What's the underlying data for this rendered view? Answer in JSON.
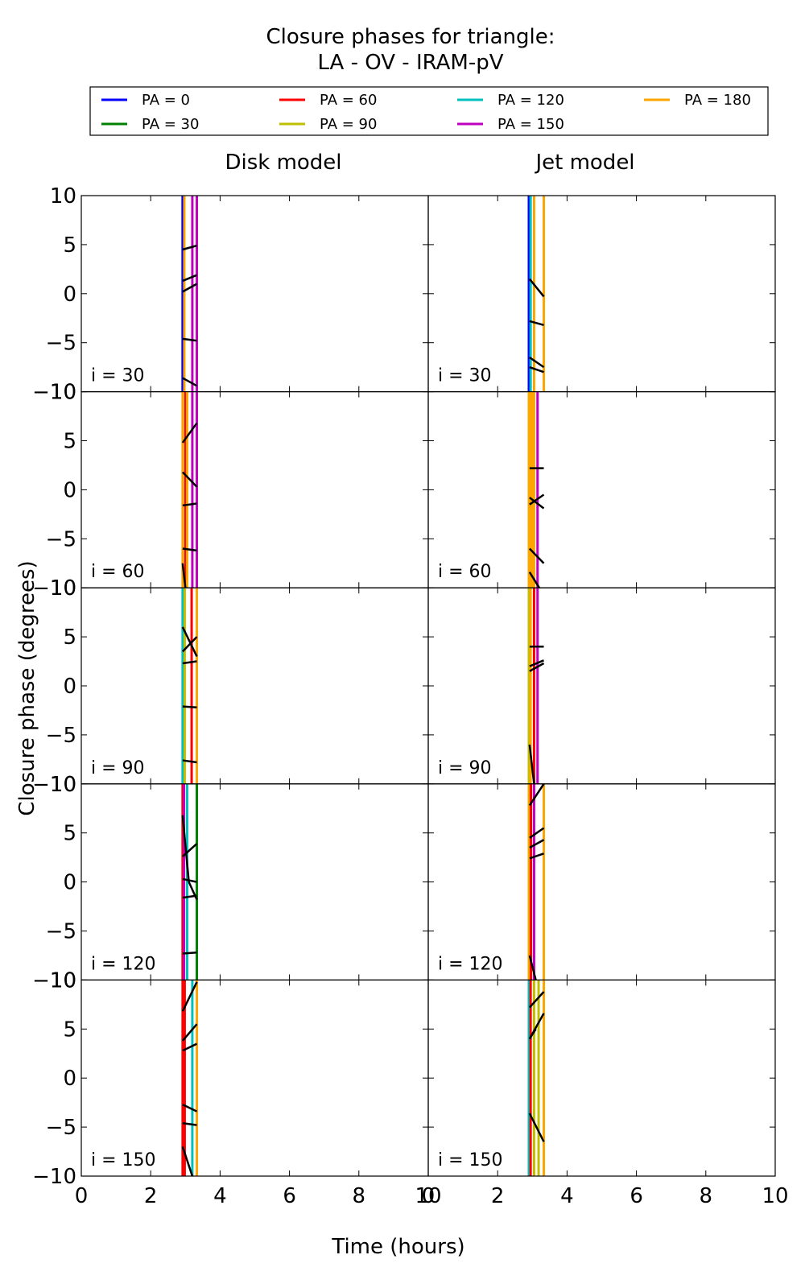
{
  "chart_data": {
    "type": "line",
    "title": "Closure phases for triangle:",
    "subtitle": "LA - OV - IRAM-pV",
    "xlabel": "Time (hours)",
    "ylabel": "Closure phase (degrees)",
    "xlim": [
      0,
      10
    ],
    "ylim": [
      -10,
      10
    ],
    "x_ticks": [
      "0",
      "2",
      "4",
      "6",
      "8",
      "10"
    ],
    "y_ticks": [
      "10",
      "5",
      "0",
      "−5",
      "−10"
    ],
    "grid": false,
    "legend_placement": "top",
    "legend": [
      {
        "label": "PA = 0",
        "color": "#0000ff"
      },
      {
        "label": "PA = 30",
        "color": "#008000"
      },
      {
        "label": "PA = 60",
        "color": "#ff0000"
      },
      {
        "label": "PA = 90",
        "color": "#bfbf00"
      },
      {
        "label": "PA = 120",
        "color": "#00bfbf"
      },
      {
        "label": "PA = 150",
        "color": "#bf00bf"
      },
      {
        "label": "PA = 180",
        "color": "#ffa500"
      }
    ],
    "columns": [
      "Disk model",
      "Jet model"
    ],
    "rows": [
      "i = 30",
      "i = 60",
      "i = 90",
      "i = 120",
      "i = 150"
    ],
    "panels": [
      [
        {
          "vlines": [
            {
              "x": 2.92,
              "color": "#0000ff"
            },
            {
              "x": 2.97,
              "color": "#ffa500"
            },
            {
              "x": 3.2,
              "color": "#bf00bf"
            },
            {
              "x": 3.33,
              "color": "#bf00bf"
            }
          ],
          "segments": [
            [
              2.92,
              4.5,
              3.33,
              4.9
            ],
            [
              2.92,
              1.3,
              3.33,
              1.9
            ],
            [
              2.92,
              0.2,
              3.33,
              1.0
            ],
            [
              2.92,
              -4.6,
              3.33,
              -4.8
            ],
            [
              2.92,
              -8.6,
              3.33,
              -9.4
            ]
          ]
        },
        {
          "vlines": [
            {
              "x": 2.9,
              "color": "#0000ff"
            },
            {
              "x": 2.95,
              "color": "#00bfbf"
            },
            {
              "x": 3.05,
              "color": "#ffa500"
            },
            {
              "x": 3.33,
              "color": "#ffa500"
            }
          ],
          "segments": [
            [
              2.92,
              1.5,
              3.33,
              -0.3
            ],
            [
              2.92,
              -2.8,
              3.33,
              -3.2
            ],
            [
              2.92,
              -6.5,
              3.33,
              -7.5
            ],
            [
              2.92,
              -7.5,
              3.33,
              -8.0
            ]
          ]
        }
      ],
      [
        {
          "vlines": [
            {
              "x": 2.92,
              "color": "#ffa500"
            },
            {
              "x": 3.0,
              "color": "#ff0000"
            },
            {
              "x": 3.05,
              "color": "#ffa500"
            },
            {
              "x": 3.2,
              "color": "#bf00bf"
            },
            {
              "x": 3.33,
              "color": "#bf00bf"
            }
          ],
          "segments": [
            [
              2.92,
              4.8,
              3.33,
              6.8
            ],
            [
              2.92,
              1.8,
              3.33,
              0.3
            ],
            [
              2.92,
              -1.6,
              3.33,
              -1.4
            ],
            [
              2.92,
              -6.0,
              3.33,
              -6.2
            ],
            [
              2.92,
              -7.5,
              3.0,
              -10.0
            ]
          ]
        },
        {
          "vlines": [
            {
              "x": 2.9,
              "color": "#ffa500"
            },
            {
              "x": 2.95,
              "color": "#ffa500"
            },
            {
              "x": 3.0,
              "color": "#ffa500"
            },
            {
              "x": 3.05,
              "color": "#ffa500"
            },
            {
              "x": 3.15,
              "color": "#bf00bf"
            }
          ],
          "segments": [
            [
              2.92,
              2.2,
              3.33,
              2.2
            ],
            [
              2.92,
              -0.8,
              3.33,
              -1.9
            ],
            [
              2.92,
              -1.5,
              3.33,
              -0.5
            ],
            [
              2.92,
              -6.0,
              3.33,
              -7.5
            ],
            [
              2.92,
              -8.4,
              3.2,
              -10.0
            ]
          ]
        }
      ],
      [
        {
          "vlines": [
            {
              "x": 2.92,
              "color": "#00bfbf"
            },
            {
              "x": 2.98,
              "color": "#bfbf00"
            },
            {
              "x": 3.18,
              "color": "#ff0000"
            },
            {
              "x": 3.33,
              "color": "#ffa500"
            }
          ],
          "segments": [
            [
              2.92,
              6.0,
              3.33,
              3.0
            ],
            [
              2.92,
              3.5,
              3.33,
              5.0
            ],
            [
              2.92,
              2.3,
              3.33,
              2.5
            ],
            [
              2.92,
              -2.1,
              3.33,
              -2.2
            ],
            [
              2.92,
              -7.6,
              3.33,
              -7.8
            ]
          ]
        },
        {
          "vlines": [
            {
              "x": 2.9,
              "color": "#bfbf00"
            },
            {
              "x": 2.95,
              "color": "#ffa500"
            },
            {
              "x": 3.05,
              "color": "#ff0000"
            },
            {
              "x": 3.15,
              "color": "#bf00bf"
            }
          ],
          "segments": [
            [
              2.92,
              4.0,
              3.33,
              4.0
            ],
            [
              2.92,
              2.0,
              3.33,
              2.6
            ],
            [
              2.92,
              1.5,
              3.33,
              2.3
            ],
            [
              2.92,
              -6.0,
              3.05,
              -10.0
            ]
          ]
        }
      ],
      [
        {
          "vlines": [
            {
              "x": 2.92,
              "color": "#ff0000"
            },
            {
              "x": 2.96,
              "color": "#bf00bf"
            },
            {
              "x": 3.05,
              "color": "#00bfbf"
            },
            {
              "x": 3.33,
              "color": "#008000"
            }
          ],
          "segments": [
            [
              2.92,
              6.8,
              3.1,
              0.0
            ],
            [
              2.92,
              2.6,
              3.33,
              3.9
            ],
            [
              2.92,
              0.3,
              3.33,
              0.0
            ],
            [
              2.92,
              -1.6,
              3.33,
              -1.4
            ],
            [
              2.92,
              -7.3,
              3.33,
              -7.2
            ],
            [
              3.1,
              0.0,
              3.33,
              -1.8
            ]
          ]
        },
        {
          "vlines": [
            {
              "x": 2.9,
              "color": "#ffa500"
            },
            {
              "x": 2.96,
              "color": "#ff0000"
            },
            {
              "x": 3.05,
              "color": "#bf00bf"
            },
            {
              "x": 3.33,
              "color": "#ffa500"
            }
          ],
          "segments": [
            [
              2.92,
              7.8,
              3.33,
              10.0
            ],
            [
              2.92,
              4.5,
              3.33,
              5.5
            ],
            [
              2.92,
              3.5,
              3.33,
              4.3
            ],
            [
              2.92,
              2.4,
              3.33,
              2.9
            ],
            [
              2.92,
              -7.5,
              3.1,
              -10.0
            ]
          ]
        }
      ],
      [
        {
          "vlines": [
            {
              "x": 2.92,
              "color": "#ff0000"
            },
            {
              "x": 2.98,
              "color": "#ff0000"
            },
            {
              "x": 3.2,
              "color": "#00bfbf"
            },
            {
              "x": 3.33,
              "color": "#ffa500"
            }
          ],
          "segments": [
            [
              2.92,
              6.8,
              3.33,
              9.8
            ],
            [
              2.92,
              3.8,
              3.33,
              5.5
            ],
            [
              2.92,
              2.8,
              3.33,
              3.5
            ],
            [
              2.92,
              -2.7,
              3.33,
              -3.4
            ],
            [
              2.92,
              -4.6,
              3.33,
              -4.8
            ],
            [
              2.92,
              -7.0,
              3.2,
              -10.0
            ]
          ]
        },
        {
          "vlines": [
            {
              "x": 2.9,
              "color": "#00bfbf"
            },
            {
              "x": 2.95,
              "color": "#ff0000"
            },
            {
              "x": 3.05,
              "color": "#bfbf00"
            },
            {
              "x": 3.18,
              "color": "#bfbf00"
            },
            {
              "x": 3.33,
              "color": "#ffa500"
            }
          ],
          "segments": [
            [
              2.92,
              7.2,
              3.33,
              8.8
            ],
            [
              2.92,
              4.0,
              3.33,
              6.6
            ],
            [
              2.92,
              -3.6,
              3.33,
              -6.5
            ],
            [
              2.92,
              4.0,
              3.1,
              5.0
            ]
          ]
        }
      ]
    ]
  }
}
